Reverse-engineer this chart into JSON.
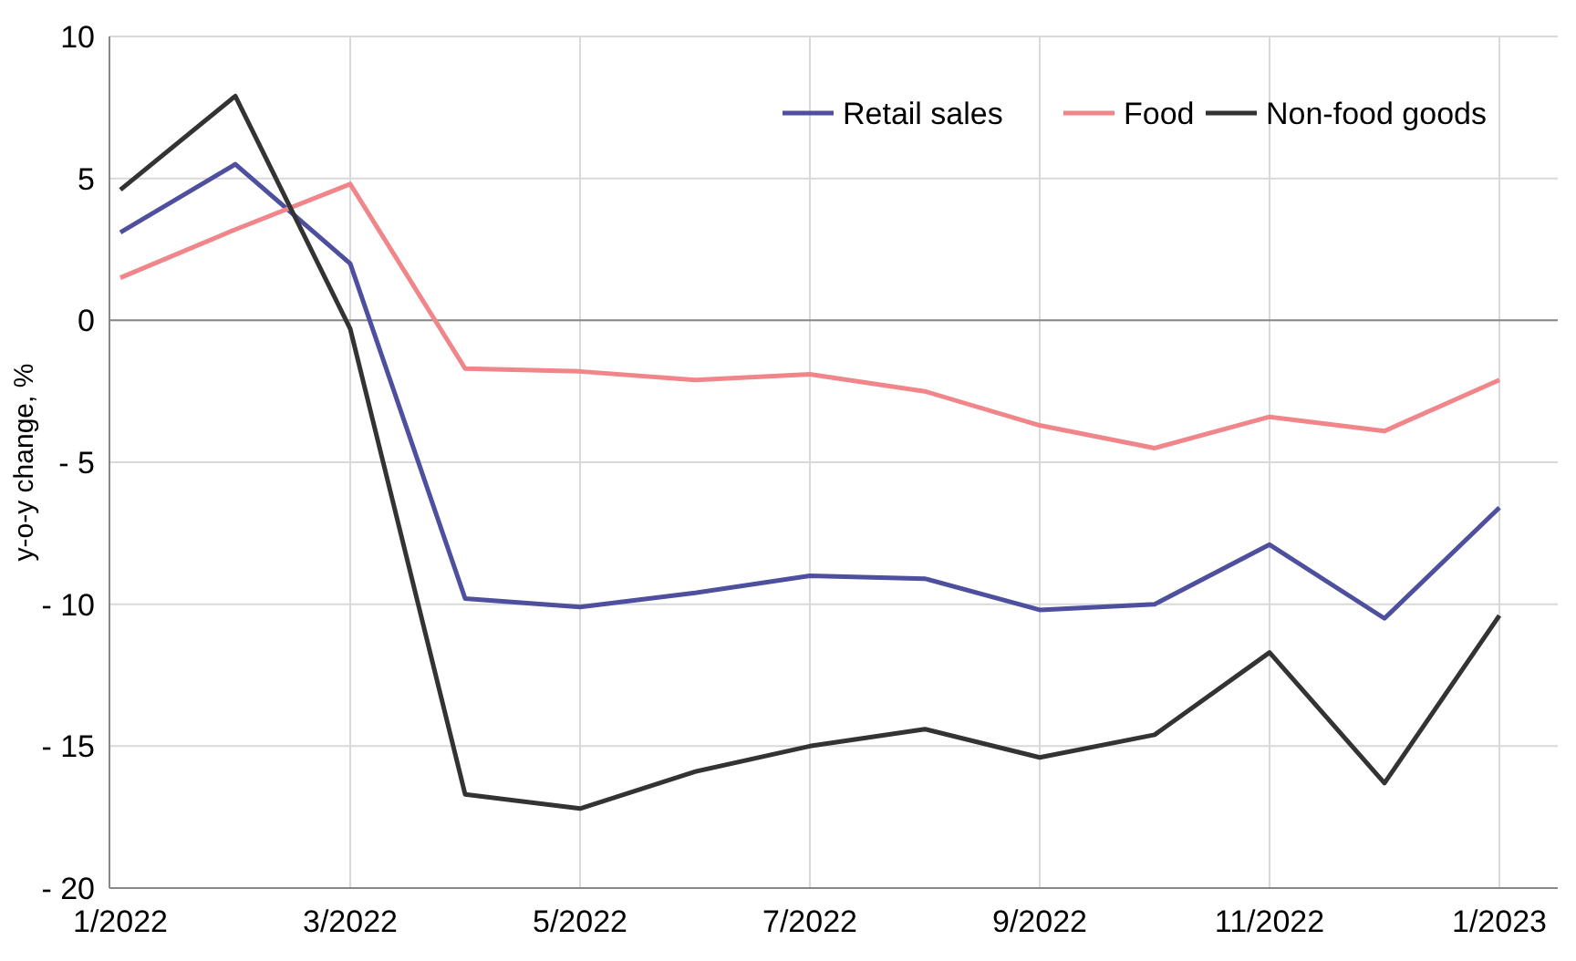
{
  "chart_data": {
    "type": "line",
    "ylabel": "y-o-y change, %",
    "categories": [
      "1/2022",
      null,
      "3/2022",
      null,
      "5/2022",
      null,
      "7/2022",
      null,
      "9/2022",
      null,
      "11/2022",
      null,
      "1/2023"
    ],
    "series": [
      {
        "name": "Retail sales",
        "color": "#4e4f9e",
        "values": [
          3.1,
          5.5,
          2.0,
          -9.8,
          -10.1,
          -9.6,
          -9.0,
          -9.1,
          -10.2,
          -10.0,
          -7.9,
          -10.5,
          -6.6
        ]
      },
      {
        "name": "Food",
        "color": "#f0868a",
        "values": [
          1.5,
          3.2,
          4.8,
          -1.7,
          -1.8,
          -2.1,
          -1.9,
          -2.5,
          -3.7,
          -4.5,
          -3.4,
          -3.9,
          -2.1
        ]
      },
      {
        "name": "Non-food goods",
        "color": "#333333",
        "values": [
          4.6,
          7.9,
          -0.3,
          -16.7,
          -17.2,
          -15.9,
          -15.0,
          -14.4,
          -15.4,
          -14.6,
          -11.7,
          -16.3,
          -10.4
        ]
      }
    ],
    "ylim": [
      -20,
      10
    ],
    "yticks": [
      {
        "value": -20,
        "label": "- 20"
      },
      {
        "value": -15,
        "label": "- 15"
      },
      {
        "value": -10,
        "label": "- 10"
      },
      {
        "value": -5,
        "label": "- 5"
      },
      0,
      5,
      10
    ],
    "grid": true,
    "legend": "top right",
    "line_style": "solid"
  }
}
